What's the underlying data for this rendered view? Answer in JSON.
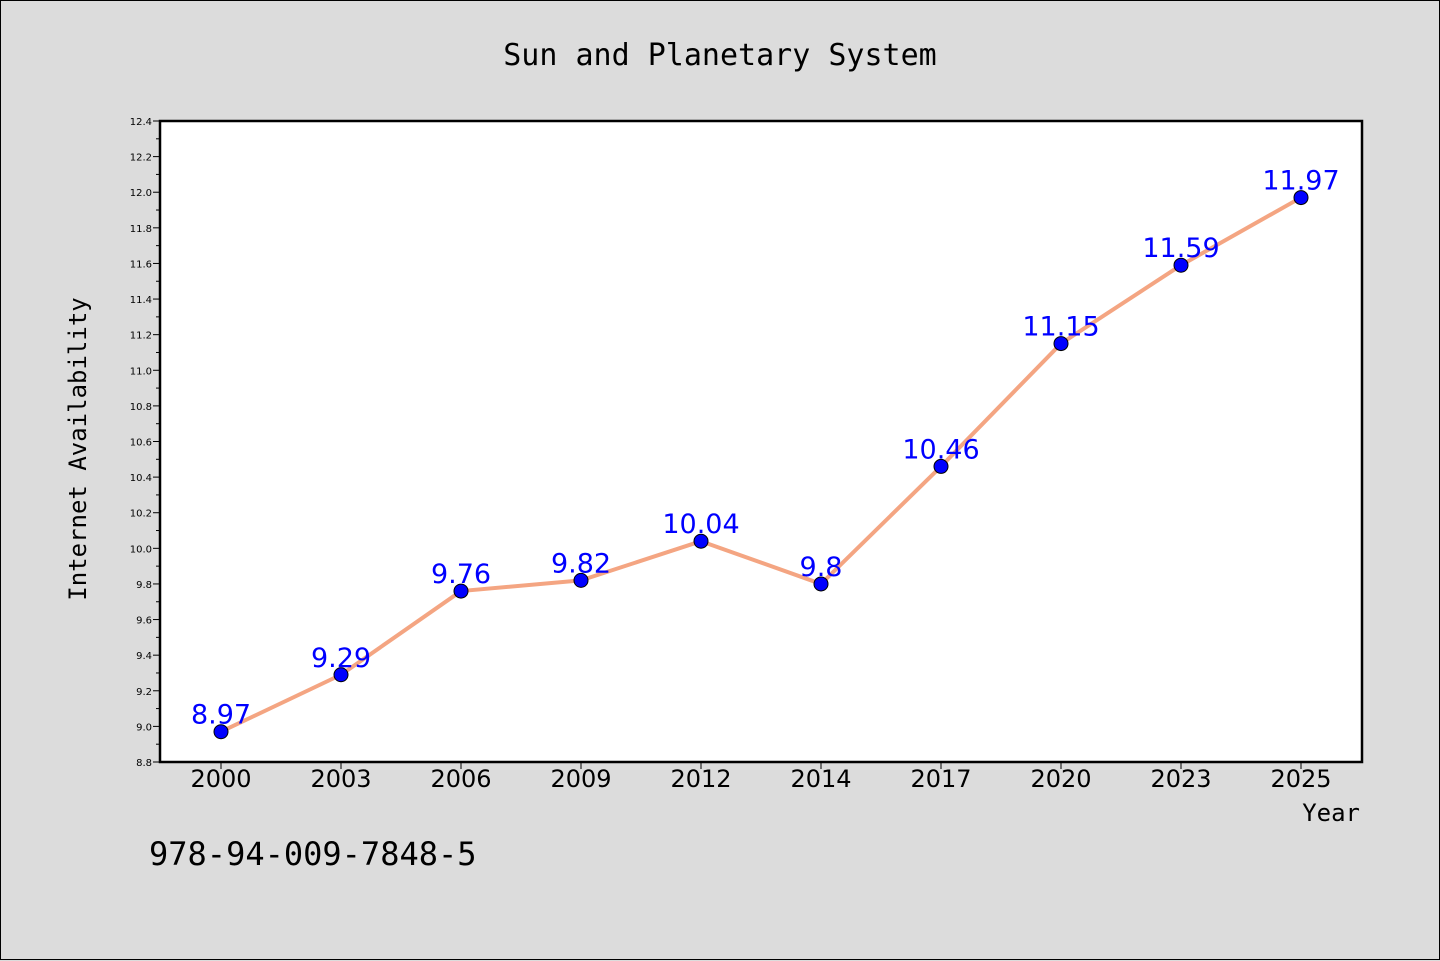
{
  "chart_data": {
    "type": "line",
    "title": "Sun and Planetary System",
    "xlabel": "Year",
    "ylabel": "Internet Availability",
    "categories": [
      "2000",
      "2003",
      "2006",
      "2009",
      "2012",
      "2014",
      "2017",
      "2020",
      "2023",
      "2025"
    ],
    "series": [
      {
        "values": [
          8.97,
          9.29,
          9.76,
          9.82,
          10.04,
          9.8,
          10.46,
          11.15,
          11.59,
          11.97
        ],
        "data_labels": [
          "8.97",
          "9.29",
          "9.76",
          "9.82",
          "10.04",
          "9.8",
          "10.46",
          "11.15",
          "11.59",
          "11.97"
        ],
        "line_color": "#f4a582",
        "marker_color": "#0000ff",
        "label_color": "#0000ff"
      }
    ],
    "ylim": [
      8.8,
      12.4
    ],
    "yticks": [
      "8.8",
      "9.0",
      "9.2",
      "9.4",
      "9.6",
      "9.8",
      "10.0",
      "10.2",
      "10.4",
      "10.6",
      "10.8",
      "11.0",
      "11.2",
      "11.4",
      "11.6",
      "11.8",
      "12.0",
      "12.2",
      "12.4"
    ],
    "grid": false,
    "legend": "none"
  },
  "annotation": "978-94-009-7848-5",
  "colors": {
    "background": "#dcdcdc",
    "plot_background": "#ffffff",
    "axis": "#000000"
  }
}
